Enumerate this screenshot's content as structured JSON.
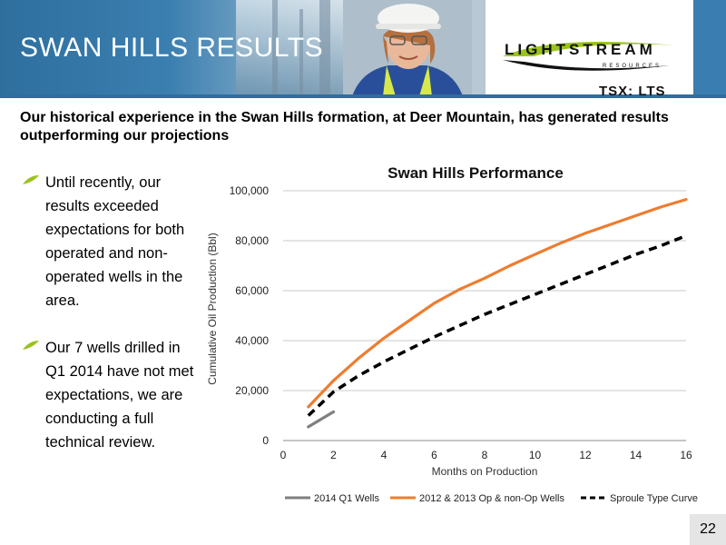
{
  "header": {
    "title": "SWAN HILLS RESULTS",
    "logo_text": "LIGHTSTREAM",
    "logo_sub": "RESOURCES",
    "ticker": "TSX: LTS"
  },
  "subtitle": "Our historical experience in the Swan Hills formation, at Deer Mountain, has generated results outperforming our projections",
  "bullets": [
    {
      "text": "Until recently, our results exceeded expectations for both operated and non-operated wells in the area."
    },
    {
      "text": "Our 7 wells drilled in Q1 2014 have not met expectations, we  are conducting a full technical review."
    }
  ],
  "colors": {
    "accent_green": "#9ac31c",
    "banner_blue": "#2f6e9c",
    "series_q1": "#7f7f7f",
    "series_op": "#ed7d31",
    "series_type": "#000000"
  },
  "page_number": "22",
  "chart_data": {
    "type": "line",
    "title": "Swan Hills Performance",
    "xlabel": "Months on Production",
    "ylabel": "Cumulative Oil Production (Bbl)",
    "xlim": [
      0,
      16
    ],
    "ylim": [
      0,
      100000
    ],
    "x_ticks": [
      "0",
      "2",
      "4",
      "6",
      "8",
      "10",
      "12",
      "14",
      "16"
    ],
    "y_ticks": [
      "0",
      "20,000",
      "40,000",
      "60,000",
      "80,000",
      "100,000"
    ],
    "grid": true,
    "legend_position": "bottom",
    "series": [
      {
        "name": "2014 Q1 Wells",
        "style": "solid",
        "color": "#7f7f7f",
        "x": [
          1,
          2
        ],
        "y": [
          5500,
          11500
        ]
      },
      {
        "name": "2012 & 2013 Op & non-Op Wells",
        "style": "solid",
        "color": "#ed7d31",
        "x": [
          1,
          2,
          3,
          4,
          5,
          6,
          7,
          8,
          9,
          10,
          11,
          12,
          13,
          14,
          15,
          16
        ],
        "y": [
          13500,
          24000,
          33000,
          41000,
          48000,
          55000,
          60500,
          65000,
          70000,
          74500,
          79000,
          83000,
          86500,
          90000,
          93500,
          96500
        ]
      },
      {
        "name": "Sproule Type Curve",
        "style": "dashed",
        "color": "#000000",
        "x": [
          1,
          2,
          3,
          4,
          5,
          6,
          7,
          8,
          9,
          10,
          11,
          12,
          13,
          14,
          15,
          16
        ],
        "y": [
          10000,
          19500,
          26000,
          31500,
          36500,
          41500,
          46000,
          50500,
          54500,
          58500,
          62500,
          66500,
          70500,
          74500,
          78000,
          82000
        ]
      }
    ]
  }
}
